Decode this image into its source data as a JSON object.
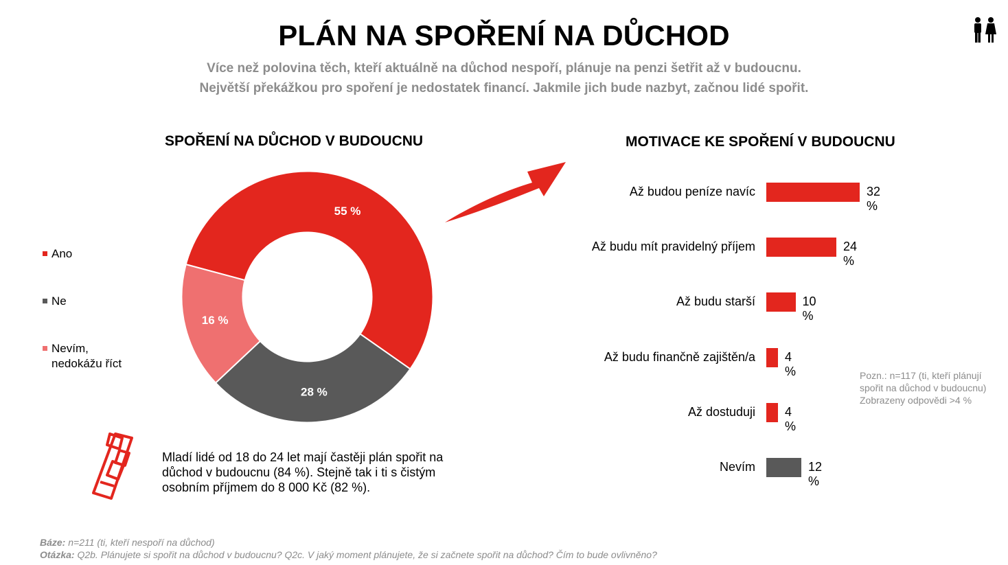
{
  "title": "PLÁN NA SPOŘENÍ NA DŮCHOD",
  "subtitle": [
    "Více než polovina těch, kteří aktuálně na důchod nespoří, plánuje na penzi šetřit až v budoucnu.",
    "Největší překážkou pro spoření je nedostatek financí. Jakmile jich bude nazbyt, začnou lidé spořit."
  ],
  "icons": {
    "people": "couple-icon",
    "arrow": "arrow-icon",
    "phone": "phone-icon"
  },
  "colors": {
    "red": "#e3261e",
    "dark_gray": "#595959",
    "light_red": "#ef7070"
  },
  "chart_data": [
    {
      "type": "pie",
      "title": "SPOŘENÍ NA DŮCHOD V BUDOUCNU",
      "categories": [
        "Ano",
        "Ne",
        "Nevím, nedokážu říct"
      ],
      "values": [
        55,
        28,
        16
      ],
      "labels": [
        "55 %",
        "28 %",
        "16 %"
      ],
      "colors": [
        "#e3261e",
        "#595959",
        "#ef7070"
      ],
      "legend": "left",
      "donut": true
    },
    {
      "type": "bar",
      "orientation": "horizontal",
      "title": "MOTIVACE KE SPOŘENÍ V BUDOUCNU",
      "categories": [
        "Až budou peníze navíc",
        "Až budu mít pravidelný příjem",
        "Až budu starší",
        "Až budu finančně zajištěn/a",
        "Až dostuduji",
        "Nevím"
      ],
      "values": [
        32,
        24,
        10,
        4,
        4,
        12
      ],
      "labels": [
        "32 %",
        "24 %",
        "10 %",
        "4 %",
        "4 %",
        "12 %"
      ],
      "colors": [
        "#e3261e",
        "#e3261e",
        "#e3261e",
        "#e3261e",
        "#e3261e",
        "#595959"
      ]
    }
  ],
  "legend": {
    "items": [
      {
        "label": "Ano",
        "color": "#e3261e"
      },
      {
        "label": "Ne",
        "color": "#595959"
      },
      {
        "label_line1": "Nevím,",
        "label_line2": "nedokážu říct",
        "color": "#ef7070"
      }
    ]
  },
  "note": {
    "line1": "Pozn.: n=117 (ti, kteří plánují",
    "line2": "spořit na důchod v budoucnu)",
    "line3": "Zobrazeny odpovědi >4 %"
  },
  "callout": {
    "line1": "Mladí lidé od 18 do 24 let mají častěji plán spořit na",
    "line2": "důchod v budoucnu (84 %). Stejně tak i ti s čistým",
    "line3": "osobním příjmem do 8 000 Kč (82 %)."
  },
  "footer": {
    "base_label": "Báze:",
    "base_text": " n=211 (ti, kteří nespoří na důchod)",
    "question_label": "Otázka:",
    "question_text": " Q2b. Plánujete si spořit na důchod v budoucnu? Q2c. V jaký moment plánujete, že si začnete spořit na důchod? Čím to bude ovlivněno?"
  }
}
